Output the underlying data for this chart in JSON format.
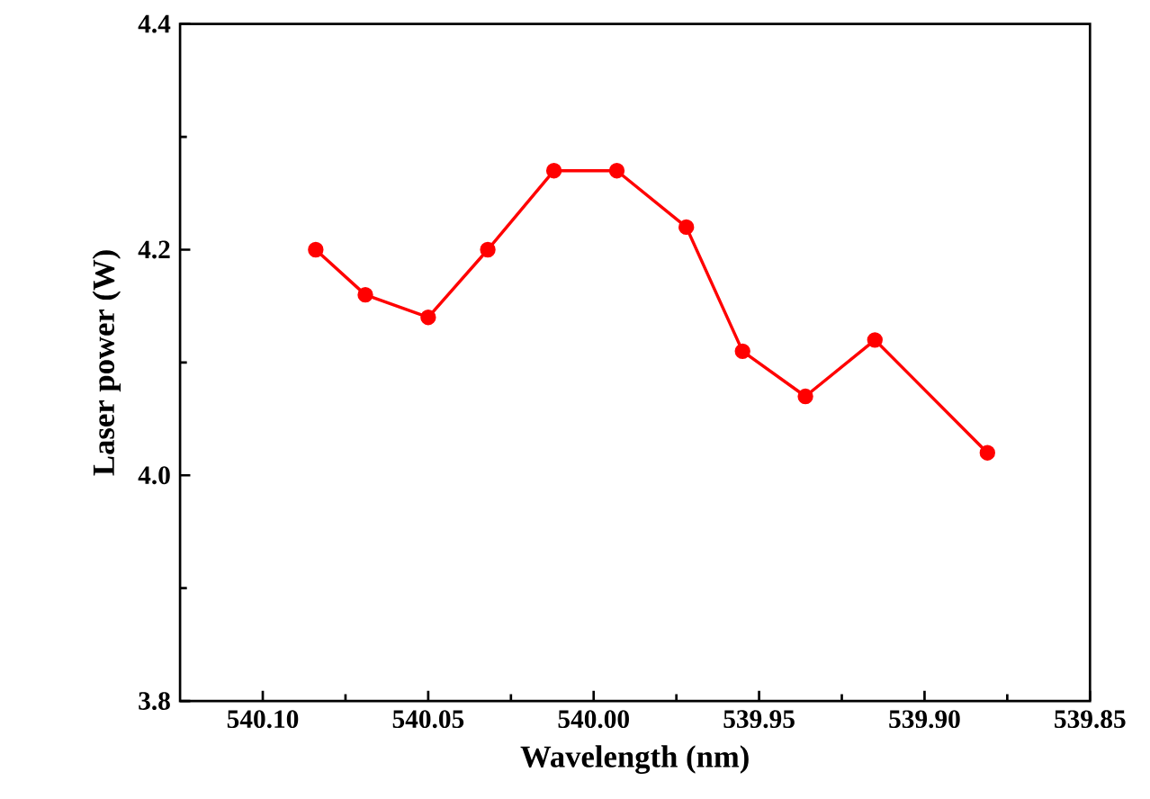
{
  "chart_data": {
    "type": "line",
    "xlabel": "Wavelength (nm)",
    "ylabel": "Laser power (W)",
    "x": [
      540.084,
      540.069,
      540.05,
      540.032,
      540.012,
      539.993,
      539.972,
      539.955,
      539.936,
      539.915,
      539.881
    ],
    "series": [
      {
        "color": "#ff0000",
        "values": [
          4.2,
          4.16,
          4.14,
          4.2,
          4.27,
          4.27,
          4.22,
          4.11,
          4.07,
          4.12,
          4.02
        ]
      }
    ],
    "xlim": [
      540.125,
      539.85
    ],
    "xticks": [
      {
        "value": 540.1,
        "label": "540.10"
      },
      {
        "value": 540.05,
        "label": "540.05"
      },
      {
        "value": 540.0,
        "label": "540.00"
      },
      {
        "value": 539.95,
        "label": "539.95"
      },
      {
        "value": 539.9,
        "label": "539.90"
      },
      {
        "value": 539.85,
        "label": "539.85"
      }
    ],
    "ylim": [
      3.8,
      4.4
    ],
    "yticks": [
      {
        "value": 3.8,
        "label": "3.8"
      },
      {
        "value": 4.0,
        "label": "4.0"
      },
      {
        "value": 4.2,
        "label": "4.2"
      },
      {
        "value": 4.4,
        "label": "4.4"
      }
    ],
    "marker": "circle",
    "line_style": "solid"
  }
}
